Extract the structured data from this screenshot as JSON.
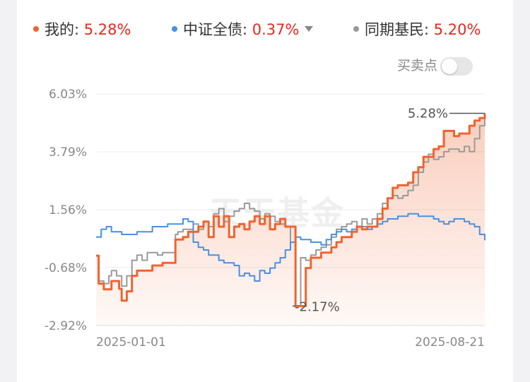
{
  "legend": [
    {
      "label": "我的:",
      "value": "5.28%",
      "color": "#f0632f",
      "has_dropdown": false
    },
    {
      "label": "中证全债:",
      "value": "0.37%",
      "color": "#4a90e2",
      "has_dropdown": true
    },
    {
      "label": "同期基民:",
      "value": "5.20%",
      "color": "#9a9a9a",
      "has_dropdown": false
    }
  ],
  "toggle": {
    "label": "买卖点",
    "on": false
  },
  "watermark": "天天基金",
  "chart_data": {
    "type": "line",
    "x_start": "2025-01-01",
    "x_end": "2025-08-21",
    "x_tick_labels": [
      "2025-01-01",
      "2025-08-21"
    ],
    "y_tick_labels": [
      "6.03%",
      "3.79%",
      "1.56%",
      "-0.68%",
      "-2.92%"
    ],
    "ylim": [
      -2.92,
      6.03
    ],
    "y_unit": "%",
    "grid": true,
    "annotations": [
      {
        "text": "5.28%",
        "type": "max"
      },
      {
        "text": "-2.17%",
        "type": "min"
      }
    ],
    "series": [
      {
        "name": "我的",
        "color": "#f0632f",
        "fill": true,
        "points": [
          [
            0,
            -0.22
          ],
          [
            0.5,
            -1.3
          ],
          [
            1.5,
            -1.52
          ],
          [
            2.5,
            -1.52
          ],
          [
            3,
            -1.2
          ],
          [
            4,
            -1.2
          ],
          [
            4.5,
            -1.5
          ],
          [
            5,
            -1.96
          ],
          [
            6,
            -1.6
          ],
          [
            7,
            -1.0
          ],
          [
            8,
            -0.8
          ],
          [
            10,
            -0.8
          ],
          [
            11,
            -0.6
          ],
          [
            12,
            -0.6
          ],
          [
            13,
            -0.5
          ],
          [
            15,
            -0.5
          ],
          [
            15.5,
            0.4
          ],
          [
            16,
            0.4
          ],
          [
            17,
            0.5
          ],
          [
            18,
            0.7
          ],
          [
            20,
            0.9
          ],
          [
            21,
            1.1
          ],
          [
            22,
            0.5
          ],
          [
            23,
            1.3
          ],
          [
            24,
            0.9
          ],
          [
            25,
            1.3
          ],
          [
            26,
            0.5
          ],
          [
            27,
            0.9
          ],
          [
            28,
            1.0
          ],
          [
            29,
            0.8
          ],
          [
            30,
            1.1
          ],
          [
            31,
            1.3
          ],
          [
            32,
            1.0
          ],
          [
            33,
            1.3
          ],
          [
            34,
            0.8
          ],
          [
            35,
            1.0
          ],
          [
            36,
            1.2
          ],
          [
            37,
            0.9
          ],
          [
            38,
            0.9
          ],
          [
            39,
            -2.17
          ],
          [
            40,
            -2.17
          ],
          [
            41,
            -0.7
          ],
          [
            42,
            -0.3
          ],
          [
            43,
            -0.3
          ],
          [
            44,
            -0.1
          ],
          [
            45,
            -0.1
          ],
          [
            46,
            0.1
          ],
          [
            47,
            0.3
          ],
          [
            48,
            0.5
          ],
          [
            49,
            0.5
          ],
          [
            50,
            0.7
          ],
          [
            51,
            0.9
          ],
          [
            52,
            0.8
          ],
          [
            53,
            0.9
          ],
          [
            54,
            0.9
          ],
          [
            55,
            1.2
          ],
          [
            56,
            1.6
          ],
          [
            57,
            2.0
          ],
          [
            58,
            2.4
          ],
          [
            59,
            2.5
          ],
          [
            60,
            2.5
          ],
          [
            61,
            2.6
          ],
          [
            62,
            3.0
          ],
          [
            63,
            3.2
          ],
          [
            64,
            3.6
          ],
          [
            65,
            3.6
          ],
          [
            66,
            3.9
          ],
          [
            67,
            4.0
          ],
          [
            68,
            4.6
          ],
          [
            69,
            4.6
          ],
          [
            70,
            4.4
          ],
          [
            71,
            4.5
          ],
          [
            72,
            4.5
          ],
          [
            73,
            4.8
          ],
          [
            74,
            5.0
          ],
          [
            75,
            5.1
          ],
          [
            76,
            5.28
          ]
        ]
      },
      {
        "name": "中证全债",
        "color": "#4a90e2",
        "fill": false,
        "points": [
          [
            0,
            0.5
          ],
          [
            1,
            0.8
          ],
          [
            2,
            0.9
          ],
          [
            3,
            0.7
          ],
          [
            4,
            0.7
          ],
          [
            5,
            0.6
          ],
          [
            7,
            0.6
          ],
          [
            8,
            0.7
          ],
          [
            10,
            0.7
          ],
          [
            11,
            0.9
          ],
          [
            13,
            0.9
          ],
          [
            14,
            1.0
          ],
          [
            16,
            1.0
          ],
          [
            17,
            1.2
          ],
          [
            18,
            1.1
          ],
          [
            19,
            0.3
          ],
          [
            20,
            0.1
          ],
          [
            21,
            0.0
          ],
          [
            22,
            -0.2
          ],
          [
            23,
            -0.2
          ],
          [
            24,
            -0.4
          ],
          [
            25,
            -0.5
          ],
          [
            26,
            -0.5
          ],
          [
            27,
            -0.6
          ],
          [
            28,
            -1.0
          ],
          [
            29,
            -0.9
          ],
          [
            30,
            -1.0
          ],
          [
            31,
            -1.2
          ],
          [
            32,
            -0.8
          ],
          [
            33,
            -0.9
          ],
          [
            34,
            -0.7
          ],
          [
            35,
            -0.5
          ],
          [
            36,
            -0.3
          ],
          [
            37,
            0.0
          ],
          [
            38,
            0.3
          ],
          [
            39,
            0.5
          ],
          [
            40,
            0.4
          ],
          [
            41,
            0.4
          ],
          [
            42,
            0.3
          ],
          [
            44,
            0.2
          ],
          [
            45,
            0.4
          ],
          [
            46,
            0.6
          ],
          [
            47,
            0.7
          ],
          [
            48,
            0.8
          ],
          [
            49,
            0.7
          ],
          [
            50,
            0.8
          ],
          [
            51,
            0.9
          ],
          [
            52,
            0.9
          ],
          [
            53,
            0.8
          ],
          [
            54,
            0.9
          ],
          [
            55,
            1.0
          ],
          [
            56,
            1.1
          ],
          [
            57,
            1.2
          ],
          [
            58,
            1.2
          ],
          [
            59,
            1.3
          ],
          [
            60,
            1.3
          ],
          [
            61,
            1.4
          ],
          [
            62,
            1.4
          ],
          [
            63,
            1.3
          ],
          [
            64,
            1.3
          ],
          [
            65,
            1.3
          ],
          [
            66,
            1.2
          ],
          [
            67,
            1.1
          ],
          [
            68,
            1.0
          ],
          [
            69,
            1.1
          ],
          [
            70,
            1.2
          ],
          [
            71,
            1.2
          ],
          [
            72,
            1.1
          ],
          [
            73,
            1.0
          ],
          [
            74,
            0.9
          ],
          [
            75,
            0.6
          ],
          [
            76,
            0.37
          ]
        ]
      },
      {
        "name": "同期基民",
        "color": "#9a9a9a",
        "fill": false,
        "points": [
          [
            0,
            -0.22
          ],
          [
            0.5,
            -1.2
          ],
          [
            1.5,
            -1.3
          ],
          [
            2.5,
            -1.0
          ],
          [
            3,
            -0.8
          ],
          [
            4,
            -1.0
          ],
          [
            5,
            -1.4
          ],
          [
            6,
            -1.0
          ],
          [
            7,
            -0.4
          ],
          [
            8,
            -0.2
          ],
          [
            9,
            -0.4
          ],
          [
            10,
            -0.1
          ],
          [
            11,
            -0.1
          ],
          [
            12,
            -0.2
          ],
          [
            13,
            -0.1
          ],
          [
            15,
            -0.1
          ],
          [
            15.5,
            0.6
          ],
          [
            16,
            0.7
          ],
          [
            17,
            0.8
          ],
          [
            18,
            0.8
          ],
          [
            19,
            1.0
          ],
          [
            20,
            0.8
          ],
          [
            21,
            1.1
          ],
          [
            22,
            0.9
          ],
          [
            23,
            1.4
          ],
          [
            24,
            1.6
          ],
          [
            25,
            1.1
          ],
          [
            26,
            1.3
          ],
          [
            27,
            1.5
          ],
          [
            28,
            1.6
          ],
          [
            29,
            1.8
          ],
          [
            30,
            1.6
          ],
          [
            31,
            1.5
          ],
          [
            32,
            1.2
          ],
          [
            33,
            1.4
          ],
          [
            34,
            1.3
          ],
          [
            35,
            1.1
          ],
          [
            36,
            1.0
          ],
          [
            37,
            0.9
          ],
          [
            38,
            0.3
          ],
          [
            39,
            -2.17
          ],
          [
            40,
            -0.3
          ],
          [
            41,
            -0.4
          ],
          [
            42,
            -0.2
          ],
          [
            43,
            0.0
          ],
          [
            44,
            0.1
          ],
          [
            45,
            0.2
          ],
          [
            46,
            0.5
          ],
          [
            47,
            0.8
          ],
          [
            48,
            0.9
          ],
          [
            49,
            1.0
          ],
          [
            50,
            1.1
          ],
          [
            51,
            0.9
          ],
          [
            52,
            1.2
          ],
          [
            53,
            1.0
          ],
          [
            54,
            1.2
          ],
          [
            55,
            1.4
          ],
          [
            56,
            1.8
          ],
          [
            57,
            2.0
          ],
          [
            58,
            2.1
          ],
          [
            59,
            2.0
          ],
          [
            60,
            2.1
          ],
          [
            61,
            2.3
          ],
          [
            62,
            2.5
          ],
          [
            63,
            3.0
          ],
          [
            64,
            3.4
          ],
          [
            65,
            3.7
          ],
          [
            66,
            3.5
          ],
          [
            67,
            3.6
          ],
          [
            68,
            3.8
          ],
          [
            69,
            3.9
          ],
          [
            70,
            3.9
          ],
          [
            71,
            3.8
          ],
          [
            72,
            4.0
          ],
          [
            73,
            3.8
          ],
          [
            74,
            4.3
          ],
          [
            75,
            4.8
          ],
          [
            76,
            5.2
          ]
        ]
      }
    ]
  }
}
